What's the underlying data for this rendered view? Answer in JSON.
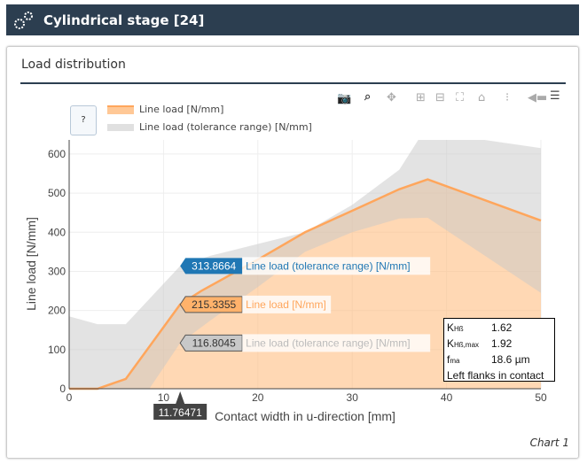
{
  "header": {
    "title": "Cylindrical stage [24]",
    "icon": "gears-icon"
  },
  "card": {
    "title": "Load distribution",
    "footer": "Chart 1",
    "help_label": "?"
  },
  "toolbar": [
    "camera-icon",
    "zoom-icon",
    "pan-icon",
    "zoom-in-icon",
    "zoom-out-icon",
    "autoscale-icon",
    "home-icon",
    "spike-lines-icon",
    "hover-closest-icon",
    "hover-compare-icon"
  ],
  "info": {
    "rows": [
      {
        "k": "KHß",
        "v": "1.62"
      },
      {
        "k": "KHß,max",
        "v": "1.92"
      },
      {
        "k": "fma",
        "v": "18.6 µm"
      }
    ],
    "note": "Left flanks in contact"
  },
  "chart_data": {
    "type": "area",
    "xlabel": "Contact width in u-direction [mm]",
    "ylabel": "Line load [N/mm]",
    "xlim": [
      0,
      50
    ],
    "ylim": [
      0,
      636
    ],
    "xticks": [
      0,
      10,
      20,
      30,
      40,
      50
    ],
    "yticks": [
      0,
      100,
      200,
      300,
      400,
      500,
      600
    ],
    "grid": true,
    "legend": "top-left",
    "colors": {
      "line": "#ffa65c",
      "band": "#d9d9d9",
      "hover_upper": "#1f77b4",
      "hover_line": "#ffb26b",
      "hover_lower": "#c8c8c8"
    },
    "series": [
      {
        "name": "Line load [N/mm]",
        "x": [
          0,
          3,
          6,
          11.76,
          14,
          20,
          25,
          30,
          35,
          38,
          50
        ],
        "y": [
          0,
          0,
          25,
          215.34,
          250,
          330,
          400,
          455,
          510,
          535,
          430
        ]
      },
      {
        "name": "Line load  (tolerance range) [N/mm]",
        "role": "upper",
        "x": [
          0,
          3,
          6,
          11.76,
          15,
          20,
          25,
          30,
          35,
          37,
          44,
          50
        ],
        "y": [
          185,
          165,
          165,
          313.87,
          340,
          370,
          400,
          470,
          560,
          636,
          636,
          615
        ]
      },
      {
        "name": "Line load  (tolerance range) [N/mm]",
        "role": "lower",
        "x": [
          0,
          8.5,
          11.76,
          15,
          20,
          25,
          30,
          35,
          38,
          50
        ],
        "y": [
          0,
          0,
          116.8,
          175,
          260,
          350,
          400,
          435,
          437,
          245
        ]
      }
    ],
    "hover": {
      "x": "11.76471",
      "values": [
        "313.8664",
        "215.3355",
        "116.8045"
      ],
      "labels": [
        "Line load  (tolerance range) [N/mm]",
        "Line load [N/mm]",
        "Line load  (tolerance range) [N/mm]"
      ]
    }
  }
}
